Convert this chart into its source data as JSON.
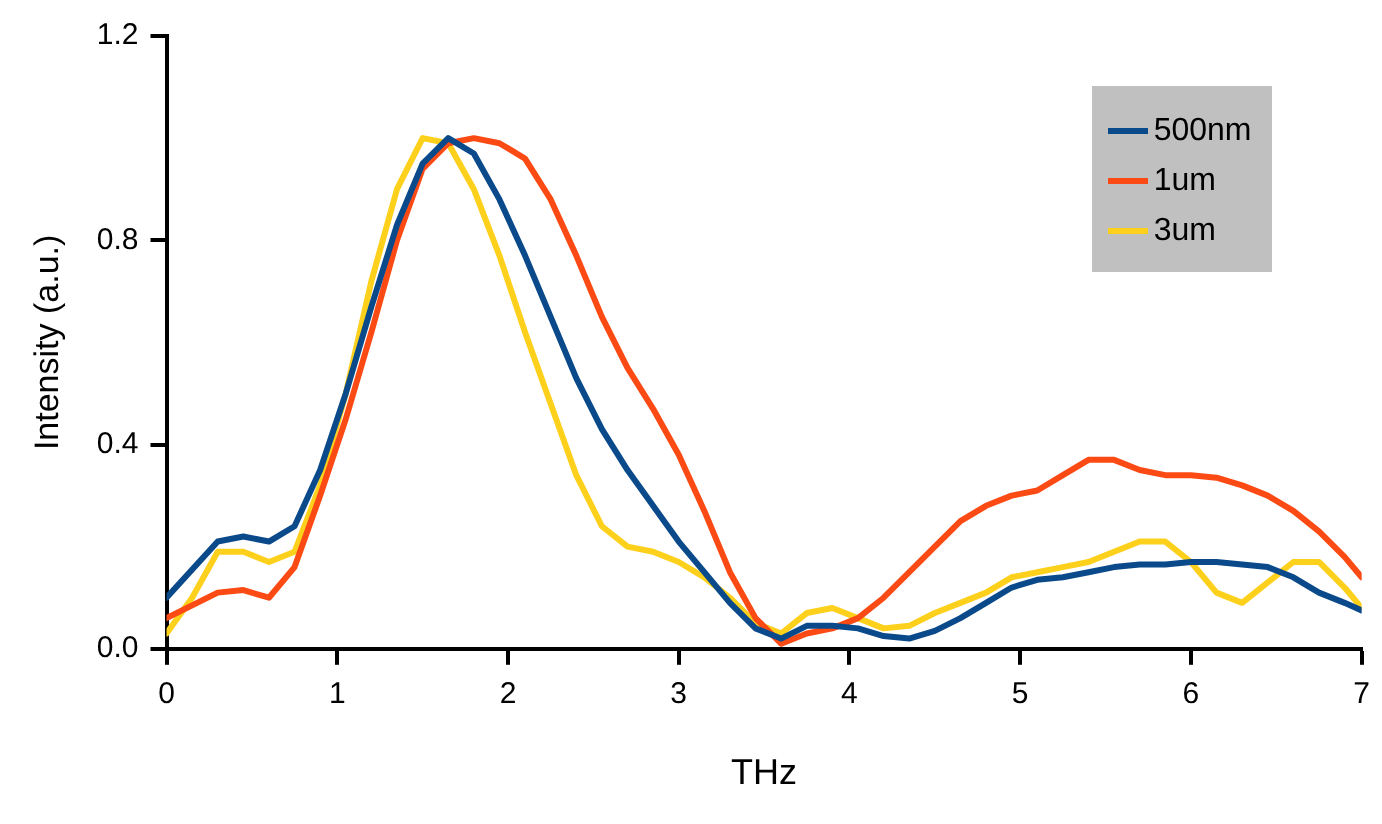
{
  "chart_data": {
    "type": "line",
    "xlabel": "THz",
    "ylabel": "Intensity (a.u.)",
    "xlim": [
      0,
      7
    ],
    "xticks": [
      0,
      1,
      2,
      3,
      4,
      5,
      6,
      7
    ],
    "ylim": [
      0,
      1.2
    ],
    "yticks": [
      {
        "value": 0,
        "label": "0.0"
      },
      {
        "value": 0.4,
        "label": "0.4"
      },
      {
        "value": 0.8,
        "label": "0.8"
      },
      {
        "value": 1.2,
        "label": "1.2"
      }
    ],
    "grid": false,
    "legend": "top right",
    "marker": "none",
    "line_style": "solid",
    "series": [
      {
        "name": "500nm",
        "color": "#0b4a8a",
        "x": [
          0,
          0.3,
          0.45,
          0.6,
          0.75,
          0.9,
          1.05,
          1.2,
          1.35,
          1.5,
          1.65,
          1.8,
          1.95,
          2.1,
          2.25,
          2.4,
          2.55,
          2.7,
          2.85,
          3.0,
          3.15,
          3.3,
          3.45,
          3.6,
          3.75,
          3.9,
          4.05,
          4.2,
          4.35,
          4.5,
          4.65,
          4.8,
          4.95,
          5.1,
          5.25,
          5.4,
          5.55,
          5.7,
          5.85,
          6.0,
          6.15,
          6.3,
          6.45,
          6.6,
          6.75,
          6.9,
          7.0
        ],
        "values": [
          0.1,
          0.21,
          0.22,
          0.21,
          0.24,
          0.35,
          0.5,
          0.67,
          0.83,
          0.95,
          1.0,
          0.97,
          0.88,
          0.77,
          0.65,
          0.53,
          0.43,
          0.35,
          0.28,
          0.21,
          0.15,
          0.09,
          0.04,
          0.02,
          0.045,
          0.045,
          0.04,
          0.025,
          0.02,
          0.035,
          0.06,
          0.09,
          0.12,
          0.135,
          0.14,
          0.15,
          0.16,
          0.165,
          0.165,
          0.17,
          0.17,
          0.165,
          0.16,
          0.14,
          0.11,
          0.09,
          0.075
        ]
      },
      {
        "name": "1um",
        "color": "#fc4a14",
        "x": [
          0,
          0.3,
          0.45,
          0.6,
          0.75,
          0.9,
          1.05,
          1.2,
          1.35,
          1.5,
          1.65,
          1.8,
          1.95,
          2.1,
          2.25,
          2.4,
          2.55,
          2.7,
          2.85,
          3.0,
          3.15,
          3.3,
          3.45,
          3.6,
          3.75,
          3.9,
          4.05,
          4.2,
          4.35,
          4.5,
          4.65,
          4.8,
          4.95,
          5.1,
          5.25,
          5.4,
          5.55,
          5.7,
          5.85,
          6.0,
          6.15,
          6.3,
          6.45,
          6.6,
          6.75,
          6.9,
          7.0
        ],
        "values": [
          0.06,
          0.11,
          0.115,
          0.1,
          0.16,
          0.3,
          0.45,
          0.62,
          0.8,
          0.94,
          0.99,
          1.0,
          0.99,
          0.96,
          0.88,
          0.77,
          0.65,
          0.55,
          0.47,
          0.38,
          0.27,
          0.15,
          0.06,
          0.01,
          0.03,
          0.04,
          0.06,
          0.1,
          0.15,
          0.2,
          0.25,
          0.28,
          0.3,
          0.31,
          0.34,
          0.37,
          0.37,
          0.35,
          0.34,
          0.34,
          0.335,
          0.32,
          0.3,
          0.27,
          0.23,
          0.18,
          0.14
        ]
      },
      {
        "name": "3um",
        "color": "#fdd01c",
        "x": [
          0,
          0.15,
          0.3,
          0.45,
          0.6,
          0.75,
          0.9,
          1.05,
          1.2,
          1.35,
          1.5,
          1.65,
          1.8,
          1.95,
          2.1,
          2.25,
          2.4,
          2.55,
          2.7,
          2.85,
          3.0,
          3.15,
          3.3,
          3.45,
          3.6,
          3.75,
          3.9,
          4.05,
          4.2,
          4.35,
          4.5,
          4.65,
          4.8,
          4.95,
          5.1,
          5.25,
          5.4,
          5.55,
          5.7,
          5.85,
          6.0,
          6.15,
          6.3,
          6.45,
          6.6,
          6.75,
          6.9,
          7.0
        ],
        "values": [
          0.03,
          0.1,
          0.19,
          0.19,
          0.17,
          0.19,
          0.32,
          0.5,
          0.72,
          0.9,
          1.0,
          0.99,
          0.9,
          0.77,
          0.62,
          0.48,
          0.34,
          0.24,
          0.2,
          0.19,
          0.17,
          0.14,
          0.1,
          0.05,
          0.03,
          0.07,
          0.08,
          0.06,
          0.04,
          0.045,
          0.07,
          0.09,
          0.11,
          0.14,
          0.15,
          0.16,
          0.17,
          0.19,
          0.21,
          0.21,
          0.17,
          0.11,
          0.09,
          0.13,
          0.17,
          0.17,
          0.12,
          0.08
        ]
      }
    ]
  }
}
